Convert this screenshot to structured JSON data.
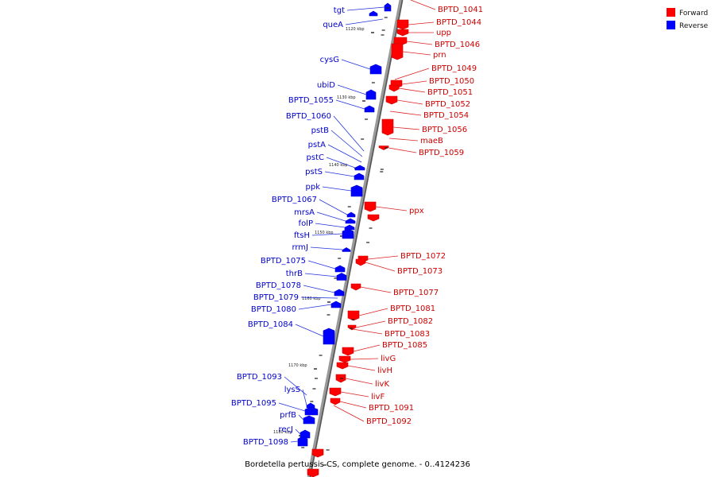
{
  "caption": "Bordetella pertussis CS, complete genome. - 0..4124236",
  "legend": [
    {
      "label": "Forward",
      "color": "#ff0000"
    },
    {
      "label": "Reverse",
      "color": "#0000ff"
    }
  ],
  "kbp_markers": [
    "1120 kbp",
    "1130 kbp",
    "1140 kbp",
    "1150 kbp",
    "1160 kbp",
    "1170 kbp",
    "1180 kbp"
  ],
  "reverse_genes": [
    "tgt",
    "queA",
    "cysG",
    "ubiD",
    "BPTD_1055",
    "BPTD_1060",
    "pstB",
    "pstA",
    "pstC",
    "pstS",
    "ppk",
    "BPTD_1067",
    "mrsA",
    "folP",
    "ftsH",
    "rrmJ",
    "BPTD_1075",
    "thrB",
    "BPTD_1078",
    "BPTD_1079",
    "BPTD_1080",
    "BPTD_1084",
    "BPTD_1093",
    "lysS",
    "BPTD_1095",
    "prfB",
    "recJ",
    "BPTD_1098"
  ],
  "forward_genes": [
    "BPTD_1041",
    "BPTD_1044",
    "upp",
    "BPTD_1046",
    "prn",
    "BPTD_1049",
    "BPTD_1050",
    "BPTD_1051",
    "BPTD_1052",
    "BPTD_1054",
    "BPTD_1056",
    "maeB",
    "BPTD_1059",
    "ppx",
    "BPTD_1072",
    "BPTD_1073",
    "BPTD_1077",
    "BPTD_1081",
    "BPTD_1082",
    "BPTD_1083",
    "BPTD_1085",
    "livG",
    "livH",
    "livK",
    "livF",
    "BPTD_1091",
    "BPTD_1092"
  ]
}
